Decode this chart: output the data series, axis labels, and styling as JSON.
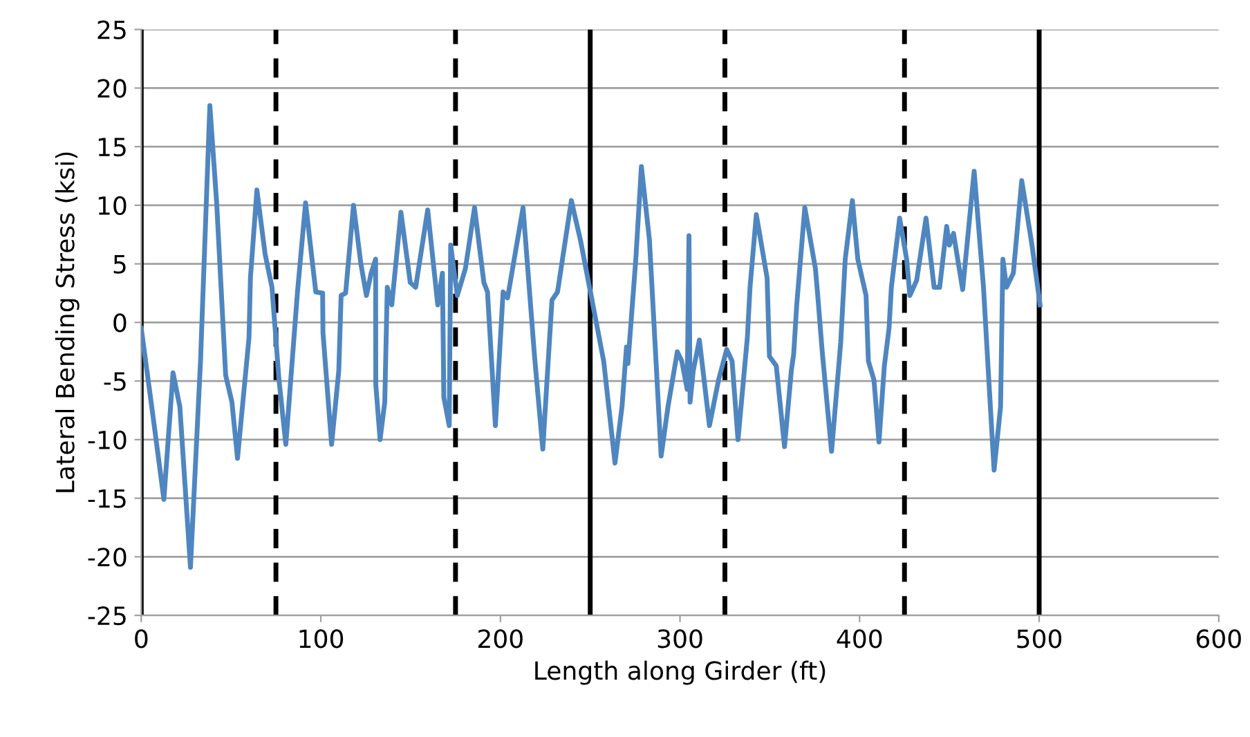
{
  "chart_data": {
    "type": "line",
    "xlabel": "Length along Girder (ft)",
    "ylabel": "Lateral Bending Stress (ksi)",
    "xlim": [
      0,
      600
    ],
    "xticks": [
      0,
      100,
      200,
      300,
      400,
      500,
      600
    ],
    "ylim": [
      -25,
      25
    ],
    "yticks": [
      -25,
      -20,
      -15,
      -10,
      -5,
      0,
      5,
      10,
      15,
      20,
      25
    ],
    "grid": "y",
    "marker": "none",
    "line_style": "solid",
    "ref_lines": [
      {
        "axis": "x",
        "value": 0,
        "color": "#000000",
        "line_style": "solid"
      },
      {
        "axis": "x",
        "value": 75,
        "color": "#000000",
        "line_style": "dashed"
      },
      {
        "axis": "x",
        "value": 175,
        "color": "#000000",
        "line_style": "dashed"
      },
      {
        "axis": "x",
        "value": 250,
        "color": "#000000",
        "line_style": "solid"
      },
      {
        "axis": "x",
        "value": 325,
        "color": "#000000",
        "line_style": "dashed"
      },
      {
        "axis": "x",
        "value": 425,
        "color": "#000000",
        "line_style": "dashed"
      },
      {
        "axis": "x",
        "value": 500,
        "color": "#000000",
        "line_style": "solid"
      }
    ],
    "series": [
      {
        "color": "#4f86c0",
        "x": [
          0,
          6.2,
          12.6,
          17.7,
          21.5,
          27.4,
          33,
          38.2,
          42,
          47,
          50.5,
          53.6,
          60,
          60.8,
          64.4,
          69,
          72.8,
          76.7,
          80.5,
          87,
          91.5,
          97.2,
          101,
          101.2,
          106,
          110,
          111.3,
          113.8,
          118.2,
          122.3,
          125.4,
          128,
          130.5,
          130.6,
          133,
          135.6,
          137,
          139.5,
          144.6,
          149.8,
          152.8,
          159.5,
          165.1,
          167.7,
          168.5,
          171.5,
          172.3,
          176,
          180.5,
          185.6,
          190.8,
          192.8,
          197.2,
          201.5,
          204,
          212.6,
          219,
          223.6,
          228.7,
          231.8,
          239.5,
          244.6,
          251,
          257.5,
          263.8,
          267.7,
          270.2,
          271,
          275.4,
          278.5,
          283,
          289.5,
          293.3,
          298.5,
          301,
          304,
          305,
          305.6,
          307.4,
          310.8,
          316.4,
          321.5,
          326,
          329,
          332.3,
          337.5,
          339,
          342.5,
          348.5,
          349.8,
          353.6,
          358.2,
          362,
          363.3,
          365,
          369.5,
          375.4,
          376.7,
          379.2,
          384.4,
          389.5,
          392,
          396,
          399,
          403.6,
          404.9,
          408,
          410.8,
          413.8,
          416.4,
          417.7,
          422.3,
          426.2,
          428,
          431.8,
          437,
          441.5,
          444.6,
          448.5,
          450,
          452.3,
          457.4,
          463.8,
          469,
          471.5,
          474.9,
          478.5,
          479.8,
          481.8,
          485.6,
          490.3,
          496,
          500.5
        ],
        "values": [
          -0.5,
          -7.6,
          -15.1,
          -4.3,
          -7.2,
          -20.9,
          -3.3,
          18.5,
          10.2,
          -4.5,
          -6.8,
          -11.6,
          -1.3,
          3.8,
          11.3,
          5.8,
          3.0,
          -4.9,
          -10.4,
          2.6,
          10.2,
          2.6,
          2.5,
          -0.9,
          -10.4,
          -4.1,
          2.3,
          2.5,
          10.0,
          5.0,
          2.3,
          4.2,
          5.4,
          -5.3,
          -10.0,
          -6.8,
          3.0,
          1.5,
          9.4,
          3.4,
          3.0,
          9.6,
          1.5,
          4.2,
          -6.4,
          -8.8,
          6.6,
          2.3,
          4.6,
          9.8,
          3.4,
          2.6,
          -8.8,
          2.6,
          2.1,
          9.8,
          -2.9,
          -10.8,
          1.9,
          2.6,
          10.4,
          7.0,
          1.9,
          -3.3,
          -12.0,
          -7.2,
          -2.1,
          -3.5,
          5.4,
          13.3,
          7.0,
          -11.4,
          -7.2,
          -2.5,
          -3.3,
          -5.7,
          7.4,
          -6.8,
          -4.1,
          -1.5,
          -8.8,
          -4.9,
          -2.3,
          -3.3,
          -10.0,
          -1.3,
          3.0,
          9.2,
          3.8,
          -2.9,
          -3.7,
          -10.6,
          -4.1,
          -2.7,
          1.5,
          9.8,
          4.6,
          2.3,
          -2.5,
          -11.0,
          -1.7,
          5.4,
          10.4,
          5.4,
          2.3,
          -3.3,
          -4.9,
          -10.2,
          -3.7,
          -0.5,
          3.0,
          8.9,
          5.4,
          2.3,
          3.6,
          8.9,
          3.0,
          3.0,
          8.2,
          6.6,
          7.6,
          2.8,
          12.9,
          3.0,
          -3.7,
          -12.6,
          -7.2,
          5.4,
          3.0,
          4.2,
          12.1,
          6.6,
          1.5
        ]
      }
    ]
  }
}
